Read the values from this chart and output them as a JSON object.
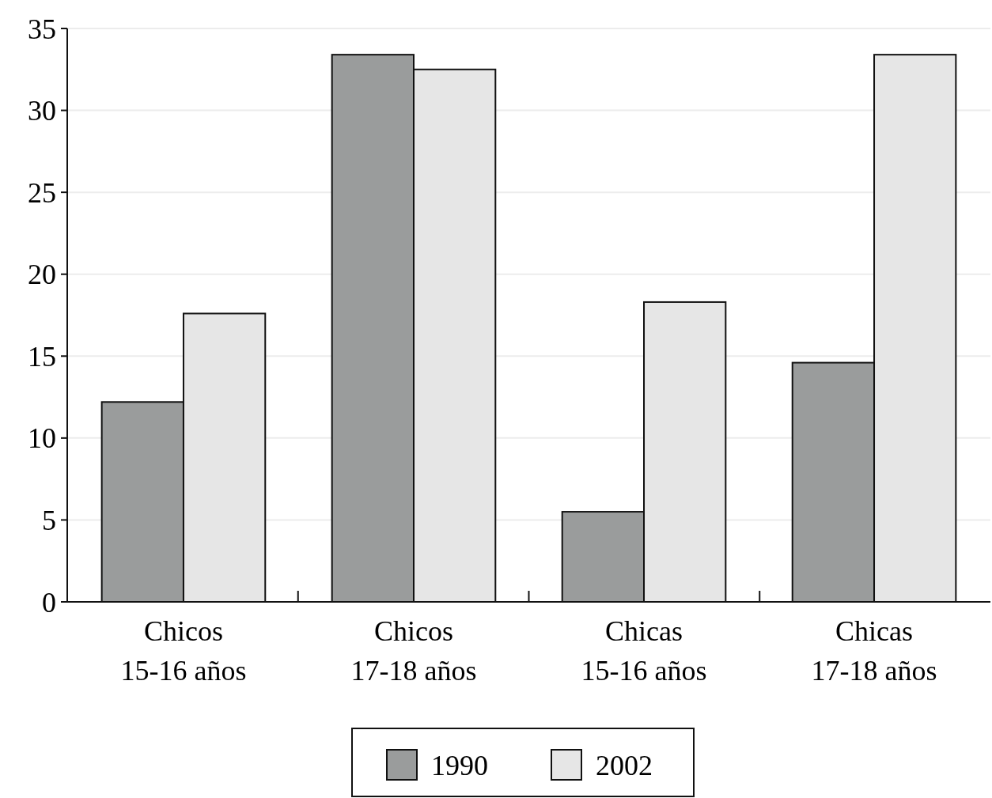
{
  "chart_data": {
    "type": "bar",
    "categories": [
      "Chicos 15-16 años",
      "Chicos 17-18 años",
      "Chicas 15-16 años",
      "Chicas 17-18 años"
    ],
    "series": [
      {
        "name": "1990",
        "color": "#9a9c9c",
        "values": [
          12.2,
          33.4,
          5.5,
          14.6
        ]
      },
      {
        "name": "2002",
        "color": "#e6e6e6",
        "values": [
          17.6,
          32.5,
          18.3,
          33.4
        ]
      }
    ],
    "ylim": [
      0,
      35
    ],
    "yticks": [
      0,
      5,
      10,
      15,
      20,
      25,
      30,
      35
    ],
    "grid": "y",
    "legend": "bottom"
  }
}
